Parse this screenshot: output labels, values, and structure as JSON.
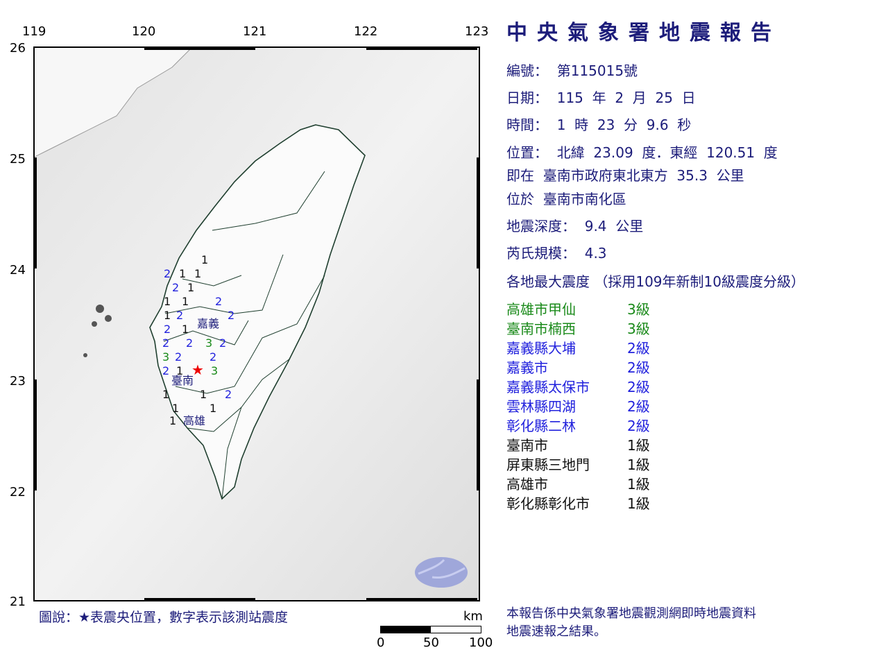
{
  "title": "中央氣象署地震報告",
  "report": {
    "number": "編號：  第115015號",
    "date": "日期：  115  年  2  月  25  日",
    "time": "時間：  1  時  23  分  9.6  秒",
    "position": "位置：  北緯  23.09  度．東經  120.51  度",
    "relative": "即在  臺南市政府東北東方  35.3  公里",
    "located": "位於  臺南市南化區",
    "depth": "地震深度：  9.4  公里",
    "magnitude": "芮氏規模：  4.3",
    "intensity_header": "各地最大震度 （採用109年新制10級震度分級）"
  },
  "intensities": [
    {
      "place": "高雄市甲仙",
      "level": "3級",
      "color": "#1a8a1a"
    },
    {
      "place": "臺南市楠西",
      "level": "3級",
      "color": "#1a8a1a"
    },
    {
      "place": "嘉義縣大埔",
      "level": "2級",
      "color": "#2222dd"
    },
    {
      "place": "嘉義市",
      "level": "2級",
      "color": "#2222dd"
    },
    {
      "place": "嘉義縣太保市",
      "level": "2級",
      "color": "#2222dd"
    },
    {
      "place": "雲林縣四湖",
      "level": "2級",
      "color": "#2222dd"
    },
    {
      "place": "彰化縣二林",
      "level": "2級",
      "color": "#2222dd"
    },
    {
      "place": "臺南市",
      "level": "1級",
      "color": "#111111"
    },
    {
      "place": "屏東縣三地門",
      "level": "1級",
      "color": "#111111"
    },
    {
      "place": "高雄市",
      "level": "1級",
      "color": "#111111"
    },
    {
      "place": "彰化縣彰化市",
      "level": "1級",
      "color": "#111111"
    }
  ],
  "map": {
    "lon_ticks": [
      "119",
      "120",
      "121",
      "122",
      "123"
    ],
    "lat_ticks": [
      "26",
      "25",
      "24",
      "23",
      "22",
      "21"
    ],
    "city_labels": [
      "嘉義",
      "臺南",
      "高雄"
    ],
    "epicenter": {
      "lat": 23.09,
      "lon": 120.51,
      "icon": "red-star"
    },
    "stations": [
      "1",
      "2",
      "1",
      "1",
      "2",
      "1",
      "1",
      "1",
      "2",
      "1",
      "2",
      "2",
      "2",
      "1",
      "2",
      "2",
      "3",
      "2",
      "3",
      "2",
      "2",
      "2",
      "1",
      "3",
      "1",
      "1",
      "2",
      "1",
      "1",
      "1"
    ],
    "legend": "圖說：★表震央位置，數字表示該測站震度",
    "scale": {
      "unit": "km",
      "labels": [
        "0",
        "50",
        "100"
      ]
    }
  },
  "footer": "本報告係中央氣象署地震觀測網即時地震資料\n地震速報之結果。"
}
